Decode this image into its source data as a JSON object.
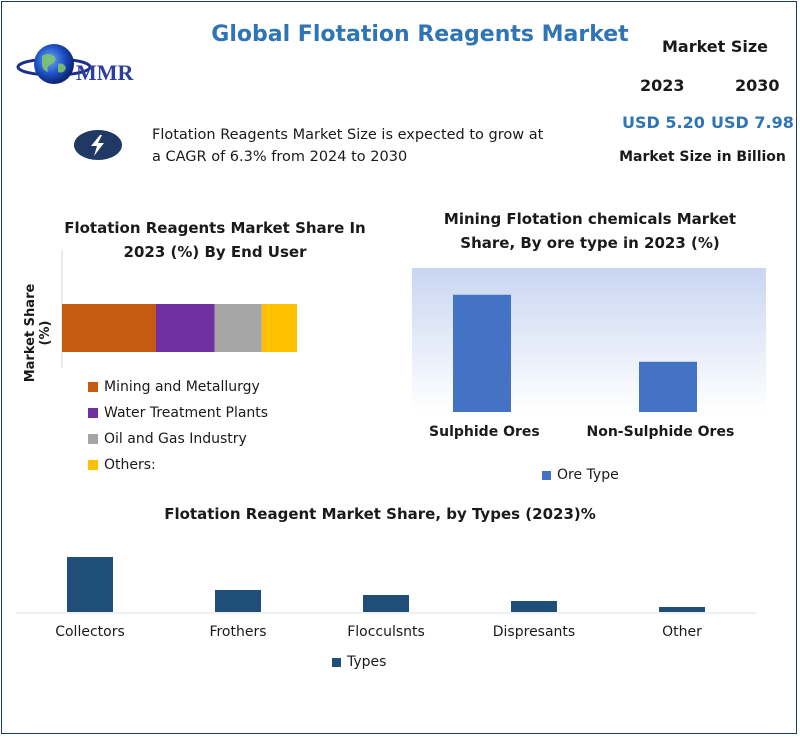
{
  "header": {
    "title": "Global Flotation Reagents Market",
    "logo_text": "MMR",
    "market_size_label": "Market Size",
    "year_2023": "2023",
    "year_2030": "2030",
    "value_2023": "USD 5.20",
    "value_2030": "USD 7.98",
    "unit": "Market Size in Billion",
    "cagr_text": "Flotation Reagents Market Size is expected to grow at a CAGR of 6.3% from 2024 to 2030"
  },
  "colors": {
    "title_blue": "#2f75b5",
    "mining": "#c55a11",
    "water": "#7030a0",
    "oil": "#a5a5a5",
    "others": "#ffc000",
    "ore_bar": "#4472c4",
    "types_bar": "#1f4e79"
  },
  "chart_data": [
    {
      "type": "bar",
      "stacked": true,
      "orientation": "horizontal",
      "title": "Flotation Reagents Market Share In 2023 (%) By End User",
      "ylabel": "Market Share (%)",
      "legend_position": "bottom",
      "series": [
        {
          "name": "Mining and Metallurgy",
          "values": [
            40
          ]
        },
        {
          "name": "Water Treatment Plants",
          "values": [
            25
          ]
        },
        {
          "name": "Oil and Gas Industry",
          "values": [
            20
          ]
        },
        {
          "name": "Others:",
          "values": [
            15
          ]
        }
      ]
    },
    {
      "type": "bar",
      "title": "Mining Flotation chemicals Market Share, By ore type in 2023 (%)",
      "categories": [
        "Sulphide Ores",
        "Non-Sulphide Ores"
      ],
      "series": [
        {
          "name": "Ore Type",
          "values": [
            70,
            30
          ]
        }
      ],
      "ylim": [
        0,
        80
      ],
      "legend_position": "bottom"
    },
    {
      "type": "bar",
      "title": "Flotation Reagent  Market Share, by Types (2023)%",
      "categories": [
        "Collectors",
        "Frothers",
        "Flocculsnts",
        "Dispresants",
        "Other"
      ],
      "series": [
        {
          "name": "Types",
          "values": [
            55,
            22,
            17,
            11,
            5
          ]
        }
      ],
      "ylim": [
        0,
        60
      ],
      "legend_position": "bottom"
    }
  ]
}
